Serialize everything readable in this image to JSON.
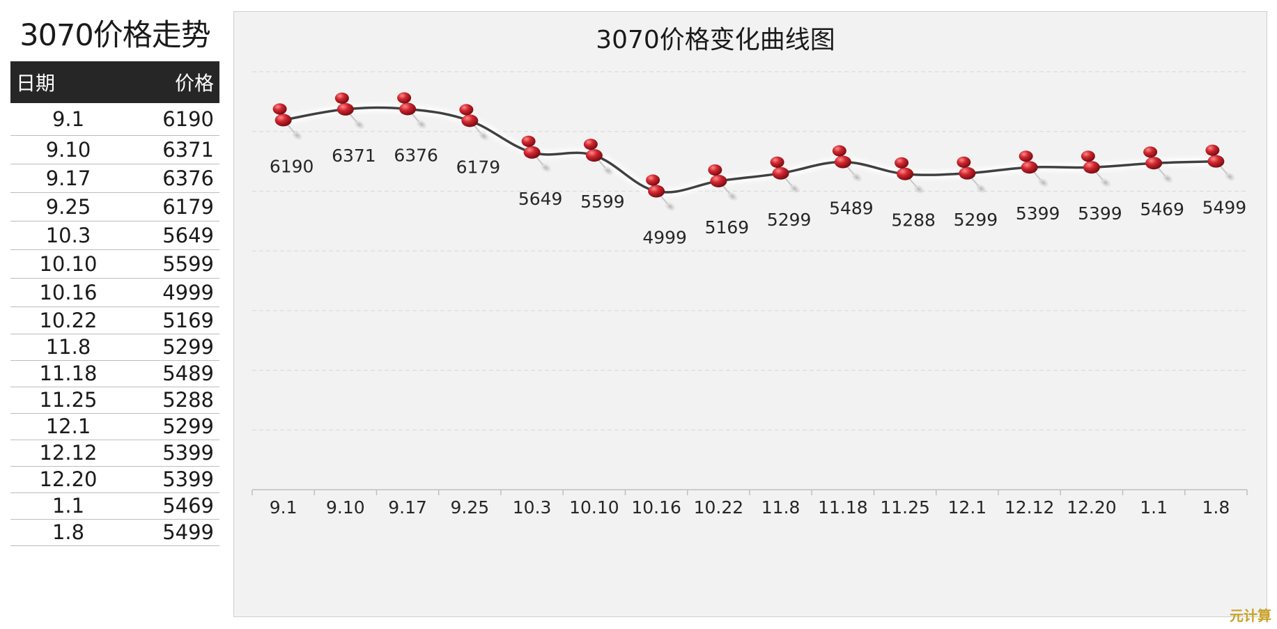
{
  "left_table": {
    "title": "3070价格走势",
    "header_date": "日期",
    "header_price": "价格",
    "rows": [
      {
        "date": "9.1",
        "price": "6190"
      },
      {
        "date": "9.10",
        "price": "6371"
      },
      {
        "date": "9.17",
        "price": "6376"
      },
      {
        "date": "9.25",
        "price": "6179"
      },
      {
        "date": "10.3",
        "price": "5649"
      },
      {
        "date": "10.10",
        "price": "5599"
      },
      {
        "date": "10.16",
        "price": "4999"
      },
      {
        "date": "10.22",
        "price": "5169"
      },
      {
        "date": "11.8",
        "price": "5299"
      },
      {
        "date": "11.18",
        "price": "5489"
      },
      {
        "date": "11.25",
        "price": "5288"
      },
      {
        "date": "12.1",
        "price": "5299"
      },
      {
        "date": "12.12",
        "price": "5399"
      },
      {
        "date": "12.20",
        "price": "5399"
      },
      {
        "date": "1.1",
        "price": "5469"
      },
      {
        "date": "1.8",
        "price": "5499"
      }
    ]
  },
  "chart_data": {
    "type": "line",
    "title": "3070价格变化曲线图",
    "categories": [
      "9.1",
      "9.10",
      "9.17",
      "9.25",
      "10.3",
      "10.10",
      "10.16",
      "10.22",
      "11.8",
      "11.18",
      "11.25",
      "12.1",
      "12.12",
      "12.20",
      "1.1",
      "1.8"
    ],
    "series": [
      {
        "values": [
          6190,
          6371,
          6376,
          6179,
          5649,
          5599,
          4999,
          5169,
          5299,
          5489,
          5288,
          5299,
          5399,
          5399,
          5469,
          5499
        ]
      }
    ],
    "ylim": [
      0,
      7000
    ],
    "grid": true,
    "data_labels": true,
    "line_color": "#404040",
    "marker_color": "#c0202a"
  },
  "watermark": "元计算"
}
